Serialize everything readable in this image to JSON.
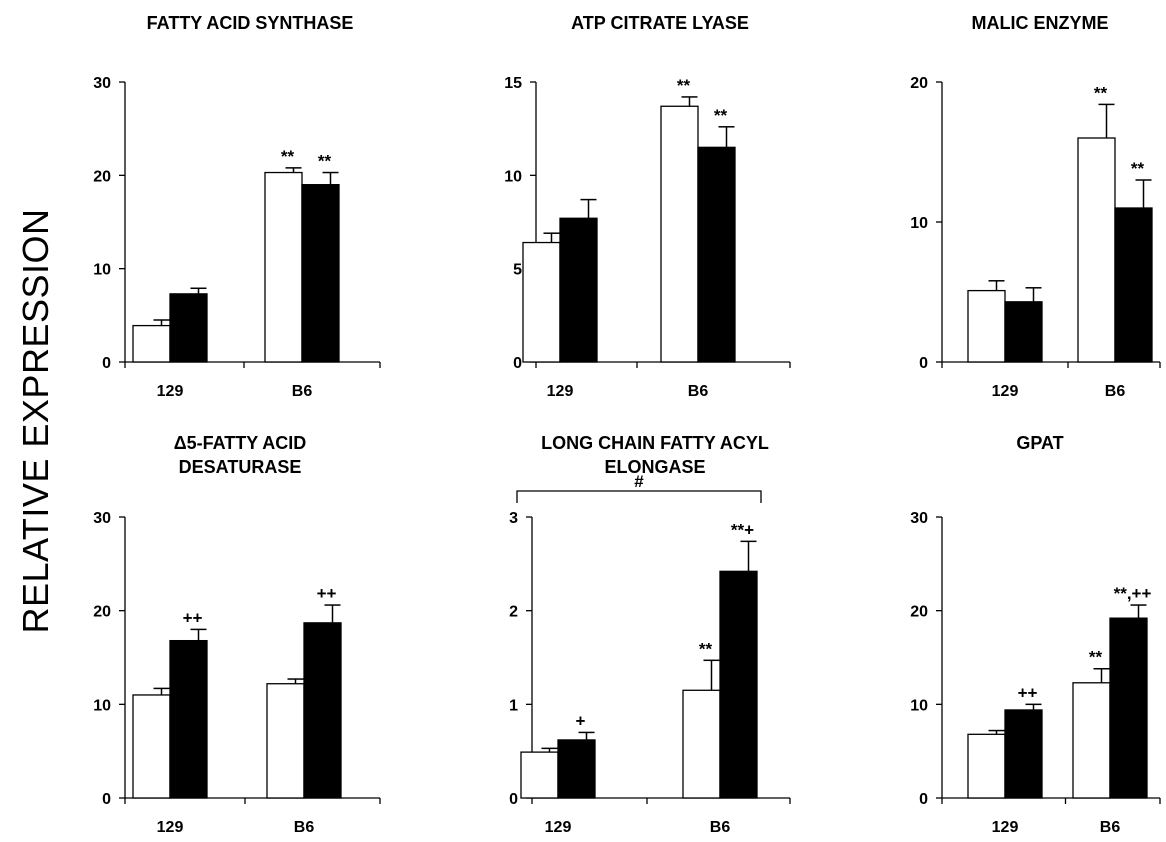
{
  "y_axis_label": "RELATIVE EXPRESSION",
  "colors": {
    "bar_white": "#ffffff",
    "bar_black": "#000000",
    "axis": "#000000"
  },
  "chart_data": [
    {
      "type": "bar",
      "title": [
        "FATTY ACID SYNTHASE"
      ],
      "categories": [
        "129",
        "B6"
      ],
      "ylim": [
        0,
        30
      ],
      "yticks": [
        0,
        10,
        20,
        30
      ],
      "series": [
        {
          "values": [
            3.9,
            20.3
          ],
          "errors": [
            0.6,
            0.5
          ],
          "annotations": [
            "",
            "**"
          ]
        },
        {
          "values": [
            7.3,
            19.0
          ],
          "errors": [
            0.6,
            1.3
          ],
          "annotations": [
            "",
            "**"
          ]
        }
      ],
      "bracket": null
    },
    {
      "type": "bar",
      "title": [
        "ATP CITRATE LYASE"
      ],
      "categories": [
        "129",
        "B6"
      ],
      "ylim": [
        0,
        15
      ],
      "yticks": [
        0,
        5,
        10,
        15
      ],
      "series": [
        {
          "values": [
            6.4,
            13.7
          ],
          "errors": [
            0.5,
            0.5
          ],
          "annotations": [
            "",
            "**"
          ]
        },
        {
          "values": [
            7.7,
            11.5
          ],
          "errors": [
            1.0,
            1.1
          ],
          "annotations": [
            "",
            "**"
          ]
        }
      ],
      "bracket": null
    },
    {
      "type": "bar",
      "title": [
        "MALIC ENZYME"
      ],
      "categories": [
        "129",
        "B6"
      ],
      "ylim": [
        0,
        20
      ],
      "yticks": [
        0,
        10,
        20
      ],
      "series": [
        {
          "values": [
            5.1,
            16.0
          ],
          "errors": [
            0.7,
            2.4
          ],
          "annotations": [
            "",
            "**"
          ]
        },
        {
          "values": [
            4.3,
            11.0
          ],
          "errors": [
            1.0,
            2.0
          ],
          "annotations": [
            "",
            "**"
          ]
        }
      ],
      "bracket": null
    },
    {
      "type": "bar",
      "title": [
        "Δ5-FATTY ACID",
        "DESATURASE"
      ],
      "categories": [
        "129",
        "B6"
      ],
      "ylim": [
        0,
        30
      ],
      "yticks": [
        0,
        10,
        20,
        30
      ],
      "series": [
        {
          "values": [
            11.0,
            12.2
          ],
          "errors": [
            0.7,
            0.5
          ],
          "annotations": [
            "",
            ""
          ]
        },
        {
          "values": [
            16.8,
            18.7
          ],
          "errors": [
            1.2,
            1.9
          ],
          "annotations": [
            "++",
            "++"
          ]
        }
      ],
      "bracket": null
    },
    {
      "type": "bar",
      "title": [
        "LONG CHAIN FATTY ACYL",
        "ELONGASE"
      ],
      "categories": [
        "129",
        "B6"
      ],
      "ylim": [
        0,
        3
      ],
      "yticks": [
        0,
        1,
        2,
        3
      ],
      "series": [
        {
          "values": [
            0.49,
            1.15
          ],
          "errors": [
            0.04,
            0.32
          ],
          "annotations": [
            "",
            "**"
          ]
        },
        {
          "values": [
            0.62,
            2.42
          ],
          "errors": [
            0.08,
            0.32
          ],
          "annotations": [
            "+",
            "**+"
          ]
        }
      ],
      "bracket": {
        "label": "#"
      }
    },
    {
      "type": "bar",
      "title": [
        "GPAT"
      ],
      "categories": [
        "129",
        "B6"
      ],
      "ylim": [
        0,
        30
      ],
      "yticks": [
        0,
        10,
        20,
        30
      ],
      "series": [
        {
          "values": [
            6.8,
            12.3
          ],
          "errors": [
            0.4,
            1.5
          ],
          "annotations": [
            "",
            "**"
          ]
        },
        {
          "values": [
            9.4,
            19.2
          ],
          "errors": [
            0.6,
            1.4
          ],
          "annotations": [
            "++",
            "**,++"
          ]
        }
      ],
      "bracket": null
    }
  ]
}
